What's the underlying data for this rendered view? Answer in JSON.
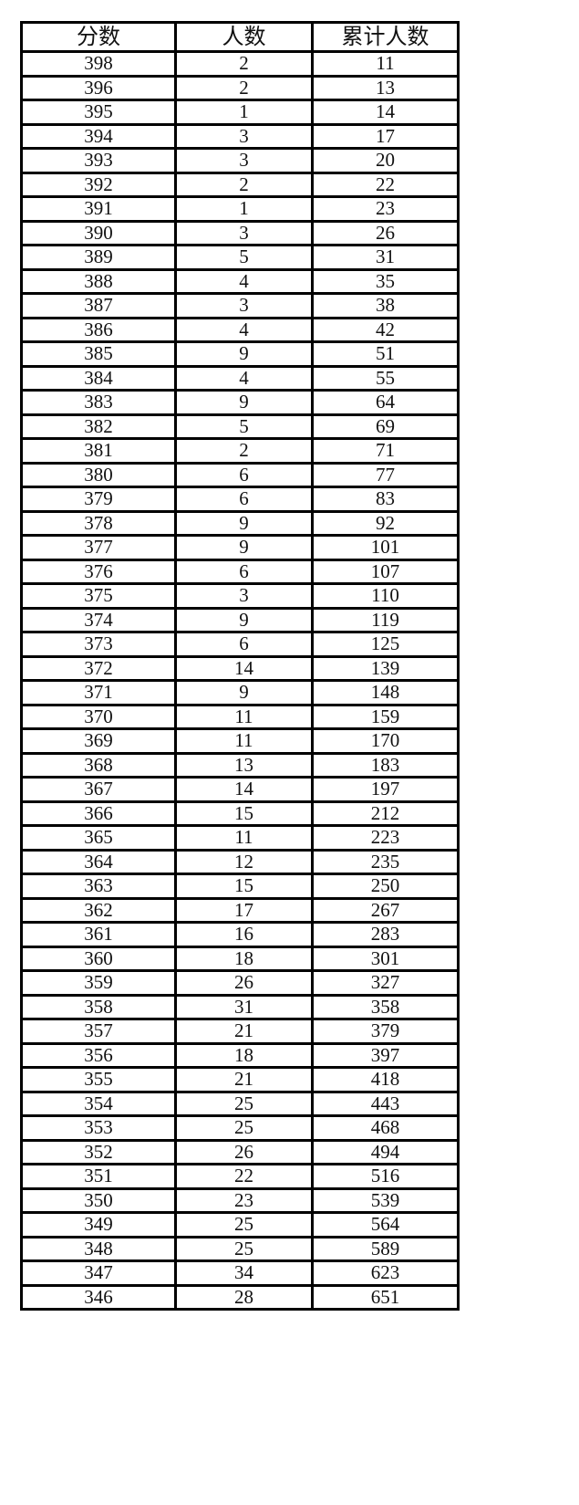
{
  "table": {
    "headers": [
      "分数",
      "人数",
      "累计人数"
    ],
    "rows": [
      [
        "398",
        "2",
        "11"
      ],
      [
        "396",
        "2",
        "13"
      ],
      [
        "395",
        "1",
        "14"
      ],
      [
        "394",
        "3",
        "17"
      ],
      [
        "393",
        "3",
        "20"
      ],
      [
        "392",
        "2",
        "22"
      ],
      [
        "391",
        "1",
        "23"
      ],
      [
        "390",
        "3",
        "26"
      ],
      [
        "389",
        "5",
        "31"
      ],
      [
        "388",
        "4",
        "35"
      ],
      [
        "387",
        "3",
        "38"
      ],
      [
        "386",
        "4",
        "42"
      ],
      [
        "385",
        "9",
        "51"
      ],
      [
        "384",
        "4",
        "55"
      ],
      [
        "383",
        "9",
        "64"
      ],
      [
        "382",
        "5",
        "69"
      ],
      [
        "381",
        "2",
        "71"
      ],
      [
        "380",
        "6",
        "77"
      ],
      [
        "379",
        "6",
        "83"
      ],
      [
        "378",
        "9",
        "92"
      ],
      [
        "377",
        "9",
        "101"
      ],
      [
        "376",
        "6",
        "107"
      ],
      [
        "375",
        "3",
        "110"
      ],
      [
        "374",
        "9",
        "119"
      ],
      [
        "373",
        "6",
        "125"
      ],
      [
        "372",
        "14",
        "139"
      ],
      [
        "371",
        "9",
        "148"
      ],
      [
        "370",
        "11",
        "159"
      ],
      [
        "369",
        "11",
        "170"
      ],
      [
        "368",
        "13",
        "183"
      ],
      [
        "367",
        "14",
        "197"
      ],
      [
        "366",
        "15",
        "212"
      ],
      [
        "365",
        "11",
        "223"
      ],
      [
        "364",
        "12",
        "235"
      ],
      [
        "363",
        "15",
        "250"
      ],
      [
        "362",
        "17",
        "267"
      ],
      [
        "361",
        "16",
        "283"
      ],
      [
        "360",
        "18",
        "301"
      ],
      [
        "359",
        "26",
        "327"
      ],
      [
        "358",
        "31",
        "358"
      ],
      [
        "357",
        "21",
        "379"
      ],
      [
        "356",
        "18",
        "397"
      ],
      [
        "355",
        "21",
        "418"
      ],
      [
        "354",
        "25",
        "443"
      ],
      [
        "353",
        "25",
        "468"
      ],
      [
        "352",
        "26",
        "494"
      ],
      [
        "351",
        "22",
        "516"
      ],
      [
        "350",
        "23",
        "539"
      ],
      [
        "349",
        "25",
        "564"
      ],
      [
        "348",
        "25",
        "589"
      ],
      [
        "347",
        "34",
        "623"
      ],
      [
        "346",
        "28",
        "651"
      ]
    ]
  }
}
